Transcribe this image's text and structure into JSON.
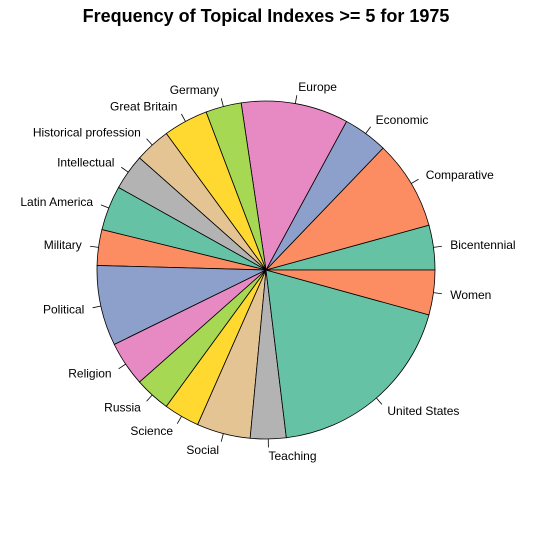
{
  "chart_data": {
    "type": "pie",
    "title": "Frequency of Topical Indexes >= 5 for 1975",
    "categories": [
      "Bicentennial",
      "Comparative",
      "Economic",
      "Europe",
      "Germany",
      "Great Britain",
      "Historical profession",
      "Intellectual",
      "Latin America",
      "Military",
      "Political",
      "Religion",
      "Russia",
      "Science",
      "Social",
      "Teaching",
      "United States",
      "Women"
    ],
    "values": [
      5,
      10,
      5,
      12,
      4,
      5,
      4,
      4,
      5,
      4,
      9,
      5,
      4,
      4,
      6,
      4,
      22,
      5
    ],
    "colors": [
      "#66C2A5",
      "#FC8D62",
      "#8DA0CB",
      "#E78AC3",
      "#A6D854",
      "#FFD92F",
      "#E5C494",
      "#B3B3B3",
      "#66C2A5",
      "#FC8D62",
      "#8DA0CB",
      "#E78AC3",
      "#A6D854",
      "#FFD92F",
      "#E5C494",
      "#B3B3B3",
      "#66C2A5",
      "#FC8D62"
    ],
    "start_angle_deg": 0,
    "direction": "counterclockwise",
    "legend": "none"
  }
}
